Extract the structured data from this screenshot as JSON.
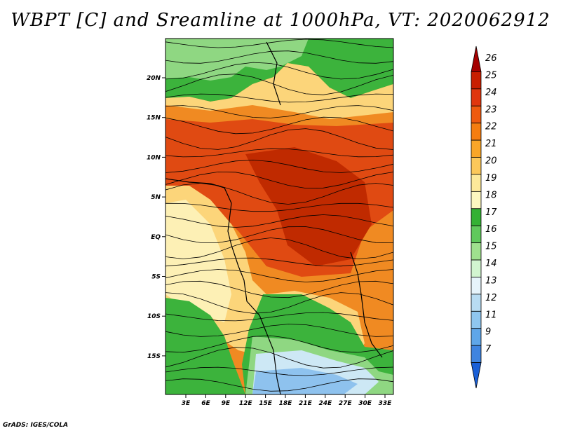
{
  "title": "WBPT [C] and Sreamline at 1000hPa, VT: 2020062912",
  "credit": "GrADS: IGES/COLA",
  "x_ticks": [
    "3E",
    "6E",
    "9E",
    "12E",
    "15E",
    "18E",
    "21E",
    "24E",
    "27E",
    "30E",
    "33E"
  ],
  "y_ticks": [
    "20N",
    "15N",
    "10N",
    "5N",
    "EQ",
    "5S",
    "10S",
    "15S"
  ],
  "legend": {
    "labels": [
      "26",
      "25",
      "24",
      "23",
      "22",
      "21",
      "20",
      "19",
      "18",
      "17",
      "16",
      "15",
      "14",
      "13",
      "12",
      "11",
      "9",
      "7"
    ],
    "colors": [
      "#a50000",
      "#c81e00",
      "#e0360e",
      "#ef5a0f",
      "#f57d10",
      "#f9a628",
      "#fcc85a",
      "#fde99a",
      "#fdf7c0",
      "#34b134",
      "#60c95c",
      "#9fe08e",
      "#d2f5d0",
      "#e6f4fb",
      "#b8dcf2",
      "#8fc6ef",
      "#5fa6e9",
      "#3f84e0",
      "#1a5fd6"
    ]
  },
  "map": {
    "colors": {
      "deep_red": "#c02a00",
      "red": "#e04a12",
      "orange": "#f08a22",
      "yellow": "#fcd57a",
      "cream": "#fdf0b5",
      "green": "#3cb33c",
      "light_green": "#8fd782",
      "pale_blue": "#cde8f5",
      "blue": "#8ec2ee",
      "dark_blue": "#5f9fe6"
    }
  }
}
